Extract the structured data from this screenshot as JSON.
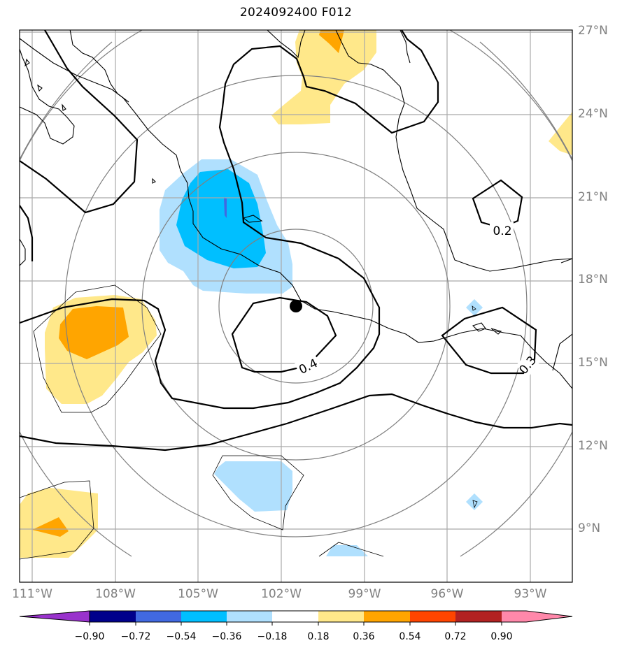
{
  "title": "2024092400 F012",
  "lat_labels": [
    "27°N",
    "24°N",
    "21°N",
    "18°N",
    "15°N",
    "12°N",
    "9°N"
  ],
  "lon_labels": [
    "111°W",
    "108°W",
    "105°W",
    "102°W",
    "99°W",
    "96°W",
    "93°W"
  ],
  "contour_labels": [
    "0.2",
    "0.4",
    "0.3"
  ],
  "colorbar": {
    "ticks": [
      "−0.90",
      "−0.72",
      "−0.54",
      "−0.36",
      "−0.18",
      "0.18",
      "0.36",
      "0.54",
      "0.72",
      "0.90"
    ],
    "colors": [
      "#9932cc",
      "#00008b",
      "#4169e1",
      "#00bfff",
      "#b0e0fe",
      "#ffffff",
      "#ffe88a",
      "#ffa500",
      "#ff4500",
      "#b22222",
      "#ff88aa"
    ]
  },
  "colors": {
    "grid": "#a9a9a9",
    "range_rings": "#808080",
    "contour": "#000000"
  },
  "marker": "storm-center"
}
